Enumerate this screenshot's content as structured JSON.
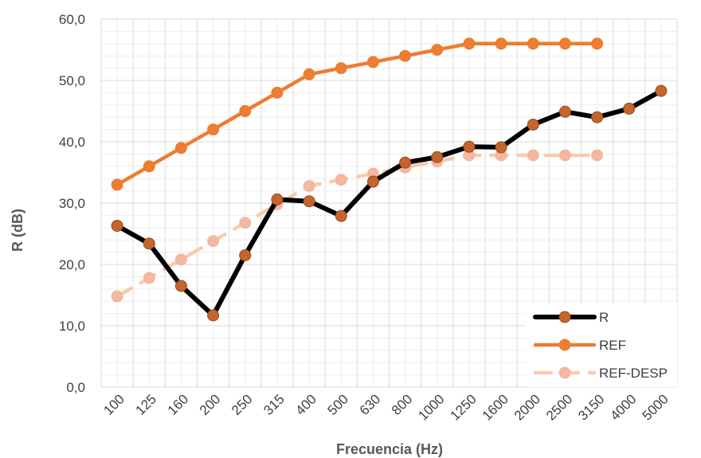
{
  "chart_data": {
    "type": "line",
    "xlabel": "Frecuencia (Hz)",
    "ylabel": "R (dB)",
    "categories": [
      "100",
      "125",
      "160",
      "200",
      "250",
      "315",
      "400",
      "500",
      "630",
      "800",
      "1000",
      "1250",
      "1600",
      "2000",
      "2500",
      "3150",
      "4000",
      "5000"
    ],
    "ylim": [
      0,
      60
    ],
    "yticks": [
      "0,0",
      "10,0",
      "20,0",
      "30,0",
      "40,0",
      "50,0",
      "60,0"
    ],
    "ytick_values": [
      0,
      10,
      20,
      30,
      40,
      50,
      60
    ],
    "grid": "major and minor (vertical and horizontal)",
    "legend_position": "bottom-right",
    "series": [
      {
        "name": "R",
        "color": "#000000",
        "marker_color": "#c5652b",
        "dash": false,
        "values": [
          26.3,
          23.4,
          16.5,
          11.7,
          21.5,
          30.6,
          30.3,
          27.9,
          33.5,
          36.6,
          37.5,
          39.2,
          39.1,
          42.8,
          44.9,
          44.0,
          45.4,
          48.3
        ]
      },
      {
        "name": "REF",
        "color": "#ed7d31",
        "marker_color": "#ed7d31",
        "dash": false,
        "values": [
          33,
          36,
          39,
          42,
          45,
          48,
          51,
          52,
          53,
          54,
          55,
          56,
          56,
          56,
          56,
          56,
          null,
          null
        ]
      },
      {
        "name": "REF-DESP",
        "color": "#f8cbad",
        "marker_color": "#f4b7a0",
        "dash": true,
        "values": [
          14.8,
          17.8,
          20.8,
          23.8,
          26.8,
          29.8,
          32.8,
          33.8,
          34.8,
          35.8,
          36.8,
          37.8,
          37.8,
          37.8,
          37.8,
          37.8,
          null,
          null
        ]
      }
    ]
  }
}
